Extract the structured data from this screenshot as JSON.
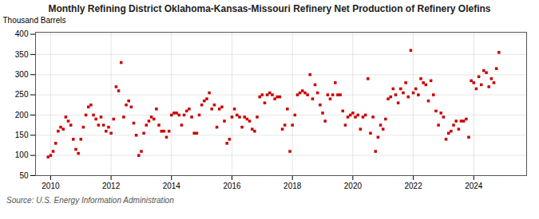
{
  "chart_data": {
    "type": "scatter",
    "title": "Monthly Refining District Oklahoma-Kansas-Missouri Refinery Net Production of Refinery Olefins",
    "ylabel": "Thousand Barrels",
    "source": "Source: U.S. Energy Information Administration",
    "color": "#cc0000",
    "marker": "square",
    "grid": true,
    "xlim": [
      2009.5,
      2025.75
    ],
    "xticks": [
      2010,
      2012,
      2014,
      2016,
      2018,
      2020,
      2022,
      2024
    ],
    "ylim": [
      50,
      405
    ],
    "yticks": [
      50,
      100,
      150,
      200,
      250,
      300,
      350,
      400
    ],
    "x": [
      2009.917,
      2010.0,
      2010.083,
      2010.167,
      2010.25,
      2010.333,
      2010.417,
      2010.5,
      2010.583,
      2010.667,
      2010.75,
      2010.833,
      2010.917,
      2011.0,
      2011.083,
      2011.167,
      2011.25,
      2011.333,
      2011.417,
      2011.5,
      2011.583,
      2011.667,
      2011.75,
      2011.833,
      2011.917,
      2012.0,
      2012.083,
      2012.167,
      2012.25,
      2012.333,
      2012.417,
      2012.5,
      2012.583,
      2012.667,
      2012.75,
      2012.833,
      2012.917,
      2013.0,
      2013.083,
      2013.167,
      2013.25,
      2013.333,
      2013.417,
      2013.5,
      2013.583,
      2013.667,
      2013.75,
      2013.833,
      2013.917,
      2014.0,
      2014.083,
      2014.167,
      2014.25,
      2014.333,
      2014.417,
      2014.5,
      2014.583,
      2014.667,
      2014.75,
      2014.833,
      2014.917,
      2015.0,
      2015.083,
      2015.167,
      2015.25,
      2015.333,
      2015.417,
      2015.5,
      2015.583,
      2015.667,
      2015.75,
      2015.833,
      2015.917,
      2016.0,
      2016.083,
      2016.167,
      2016.25,
      2016.333,
      2016.417,
      2016.5,
      2016.583,
      2016.667,
      2016.75,
      2016.833,
      2016.917,
      2017.0,
      2017.083,
      2017.167,
      2017.25,
      2017.333,
      2017.417,
      2017.5,
      2017.583,
      2017.667,
      2017.75,
      2017.833,
      2017.917,
      2018.0,
      2018.083,
      2018.167,
      2018.25,
      2018.333,
      2018.417,
      2018.5,
      2018.583,
      2018.667,
      2018.75,
      2018.833,
      2018.917,
      2019.0,
      2019.083,
      2019.167,
      2019.25,
      2019.333,
      2019.417,
      2019.5,
      2019.583,
      2019.667,
      2019.75,
      2019.833,
      2019.917,
      2020.0,
      2020.083,
      2020.167,
      2020.25,
      2020.333,
      2020.417,
      2020.5,
      2020.583,
      2020.667,
      2020.75,
      2020.833,
      2020.917,
      2021.0,
      2021.083,
      2021.167,
      2021.25,
      2021.333,
      2021.417,
      2021.5,
      2021.583,
      2021.667,
      2021.75,
      2021.833,
      2021.917,
      2022.0,
      2022.083,
      2022.167,
      2022.25,
      2022.333,
      2022.417,
      2022.5,
      2022.583,
      2022.667,
      2022.75,
      2022.833,
      2022.917,
      2023.0,
      2023.083,
      2023.167,
      2023.25,
      2023.333,
      2023.417,
      2023.5,
      2023.583,
      2023.667,
      2023.75,
      2023.833,
      2023.917,
      2024.0,
      2024.083,
      2024.167,
      2024.25,
      2024.333,
      2024.417,
      2024.5,
      2024.583,
      2024.667,
      2024.75,
      2024.833
    ],
    "values": [
      96,
      100,
      110,
      130,
      160,
      170,
      165,
      195,
      185,
      175,
      140,
      115,
      105,
      140,
      170,
      200,
      220,
      225,
      200,
      190,
      175,
      195,
      175,
      160,
      170,
      155,
      190,
      270,
      260,
      330,
      195,
      225,
      235,
      220,
      180,
      150,
      100,
      110,
      155,
      175,
      185,
      195,
      190,
      215,
      175,
      160,
      160,
      145,
      160,
      200,
      205,
      205,
      200,
      175,
      200,
      210,
      215,
      195,
      155,
      155,
      200,
      225,
      235,
      240,
      255,
      215,
      225,
      170,
      215,
      220,
      185,
      130,
      140,
      195,
      215,
      200,
      195,
      170,
      195,
      190,
      185,
      165,
      160,
      195,
      245,
      250,
      230,
      250,
      255,
      250,
      240,
      245,
      245,
      165,
      175,
      215,
      110,
      175,
      200,
      250,
      255,
      260,
      255,
      250,
      300,
      240,
      275,
      255,
      225,
      205,
      185,
      250,
      240,
      250,
      280,
      250,
      250,
      210,
      175,
      195,
      200,
      205,
      195,
      200,
      165,
      195,
      200,
      290,
      155,
      195,
      110,
      145,
      175,
      165,
      190,
      240,
      245,
      265,
      250,
      230,
      265,
      255,
      280,
      245,
      360,
      255,
      265,
      250,
      290,
      280,
      275,
      235,
      285,
      250,
      210,
      175,
      205,
      195,
      140,
      155,
      160,
      175,
      185,
      165,
      185,
      185,
      190,
      145,
      285,
      280,
      265,
      295,
      275,
      310,
      305,
      270,
      290,
      280,
      315,
      355
    ]
  }
}
